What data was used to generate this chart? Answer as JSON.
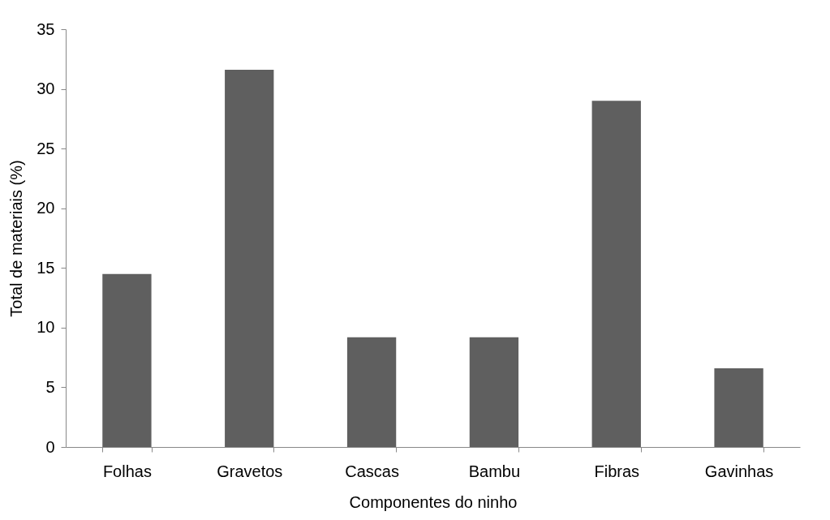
{
  "chart_data": {
    "type": "bar",
    "xlabel": "Componentes do ninho",
    "ylabel": "Total de materiais (%)",
    "categories": [
      "Folhas",
      "Gravetos",
      "Cascas",
      "Bambu",
      "Fibras",
      "Gavinhas"
    ],
    "values": [
      14.5,
      31.6,
      9.2,
      9.2,
      29.0,
      6.6
    ],
    "color": "#5f5f5f",
    "ylim": [
      0,
      35
    ],
    "yticks": [
      0,
      5,
      10,
      15,
      20,
      25,
      30,
      35
    ],
    "grid": false
  }
}
